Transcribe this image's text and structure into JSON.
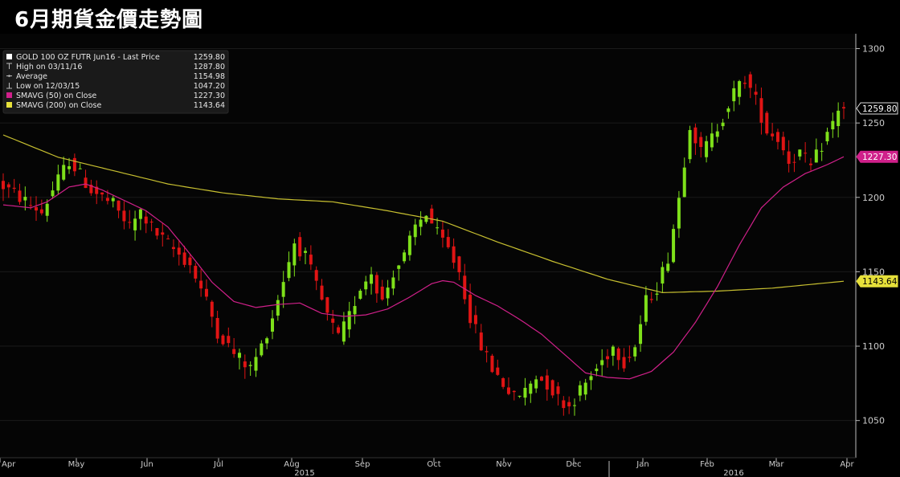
{
  "banner": {
    "title": "6月期貨金價走勢圖"
  },
  "legend": [
    {
      "label": "GOLD 100 OZ FUTR Jun16 - Last Price",
      "value": "1259.80",
      "marker": "last-price"
    },
    {
      "label": "High on 03/11/16",
      "value": "1287.80",
      "marker": "high"
    },
    {
      "label": "Average",
      "value": "1154.98",
      "marker": "average"
    },
    {
      "label": "Low on 12/03/15",
      "value": "1047.20",
      "marker": "low"
    },
    {
      "label": "SMAVG (50) on Close",
      "value": "1227.30",
      "marker": "sma50"
    },
    {
      "label": "SMAVG (200) on Close",
      "value": "1143.64",
      "marker": "sma200"
    }
  ],
  "chart_data": {
    "type": "candlestick",
    "ylim": [
      1025,
      1310
    ],
    "y_ticks": [
      1050,
      1100,
      1150,
      1200,
      1250,
      1300
    ],
    "x_months": [
      "Apr",
      "May",
      "Jun",
      "Jul",
      "Aug",
      "Sep",
      "Oct",
      "Nov",
      "Dec",
      "Jan",
      "Feb",
      "Mar",
      "Apr"
    ],
    "x_years": [
      "2015",
      "2016"
    ],
    "value_tags": [
      {
        "name": "last-price",
        "value": 1259.8,
        "label": "1259.80"
      },
      {
        "name": "sma50",
        "value": 1227.3,
        "label": "1227.30"
      },
      {
        "name": "sma200",
        "value": 1143.64,
        "label": "1143.64"
      }
    ],
    "colors": {
      "up": "#7ee01a",
      "down": "#e01414",
      "sma50": "#d0208a",
      "sma200": "#c8c030",
      "grid": "#1a1a1a",
      "axis": "#bbbbbb"
    },
    "trend_points": [
      [
        0,
        1210
      ],
      [
        4,
        1200
      ],
      [
        8,
        1190
      ],
      [
        10,
        1205
      ],
      [
        13,
        1225
      ],
      [
        17,
        1205
      ],
      [
        21,
        1195
      ],
      [
        24,
        1180
      ],
      [
        26,
        1190
      ],
      [
        29,
        1175
      ],
      [
        32,
        1165
      ],
      [
        35,
        1155
      ],
      [
        38,
        1130
      ],
      [
        40,
        1110
      ],
      [
        43,
        1095
      ],
      [
        46,
        1085
      ],
      [
        48,
        1100
      ],
      [
        50,
        1120
      ],
      [
        52,
        1145
      ],
      [
        54,
        1170
      ],
      [
        56,
        1160
      ],
      [
        58,
        1140
      ],
      [
        60,
        1120
      ],
      [
        62,
        1105
      ],
      [
        64,
        1120
      ],
      [
        66,
        1140
      ],
      [
        68,
        1150
      ],
      [
        70,
        1130
      ],
      [
        72,
        1150
      ],
      [
        74,
        1160
      ],
      [
        76,
        1180
      ],
      [
        78,
        1190
      ],
      [
        80,
        1175
      ],
      [
        82,
        1165
      ],
      [
        84,
        1150
      ],
      [
        86,
        1120
      ],
      [
        88,
        1100
      ],
      [
        90,
        1085
      ],
      [
        92,
        1075
      ],
      [
        94,
        1065
      ],
      [
        96,
        1070
      ],
      [
        98,
        1080
      ],
      [
        100,
        1075
      ],
      [
        102,
        1065
      ],
      [
        104,
        1060
      ],
      [
        106,
        1070
      ],
      [
        108,
        1080
      ],
      [
        110,
        1090
      ],
      [
        112,
        1100
      ],
      [
        114,
        1090
      ],
      [
        116,
        1100
      ],
      [
        118,
        1130
      ],
      [
        120,
        1140
      ],
      [
        122,
        1160
      ],
      [
        124,
        1200
      ],
      [
        126,
        1250
      ],
      [
        128,
        1230
      ],
      [
        130,
        1240
      ],
      [
        132,
        1255
      ],
      [
        134,
        1270
      ],
      [
        136,
        1280
      ],
      [
        138,
        1265
      ],
      [
        140,
        1245
      ],
      [
        142,
        1240
      ],
      [
        144,
        1225
      ],
      [
        146,
        1230
      ],
      [
        148,
        1220
      ],
      [
        150,
        1235
      ],
      [
        152,
        1250
      ],
      [
        153,
        1259.8
      ]
    ],
    "sma50_points": [
      [
        0,
        1195
      ],
      [
        5,
        1193
      ],
      [
        8,
        1197
      ],
      [
        12,
        1207
      ],
      [
        15,
        1209
      ],
      [
        18,
        1205
      ],
      [
        22,
        1198
      ],
      [
        26,
        1191
      ],
      [
        30,
        1180
      ],
      [
        34,
        1162
      ],
      [
        38,
        1143
      ],
      [
        42,
        1130
      ],
      [
        46,
        1126
      ],
      [
        50,
        1128
      ],
      [
        54,
        1129
      ],
      [
        58,
        1122
      ],
      [
        62,
        1120
      ],
      [
        66,
        1121
      ],
      [
        70,
        1125
      ],
      [
        74,
        1133
      ],
      [
        78,
        1142
      ],
      [
        80,
        1144
      ],
      [
        82,
        1143
      ],
      [
        86,
        1134
      ],
      [
        90,
        1127
      ],
      [
        94,
        1118
      ],
      [
        98,
        1108
      ],
      [
        102,
        1095
      ],
      [
        106,
        1082
      ],
      [
        110,
        1079
      ],
      [
        114,
        1078
      ],
      [
        118,
        1083
      ],
      [
        122,
        1096
      ],
      [
        126,
        1116
      ],
      [
        130,
        1140
      ],
      [
        134,
        1168
      ],
      [
        138,
        1193
      ],
      [
        142,
        1207
      ],
      [
        146,
        1216
      ],
      [
        150,
        1222
      ],
      [
        153,
        1227.3
      ]
    ],
    "sma200_points": [
      [
        0,
        1242
      ],
      [
        10,
        1227
      ],
      [
        20,
        1218
      ],
      [
        30,
        1209
      ],
      [
        40,
        1203
      ],
      [
        50,
        1199
      ],
      [
        60,
        1197
      ],
      [
        70,
        1191
      ],
      [
        80,
        1184
      ],
      [
        90,
        1170
      ],
      [
        100,
        1157
      ],
      [
        110,
        1145
      ],
      [
        120,
        1136
      ],
      [
        130,
        1137
      ],
      [
        140,
        1139
      ],
      [
        153,
        1143.64
      ]
    ]
  }
}
